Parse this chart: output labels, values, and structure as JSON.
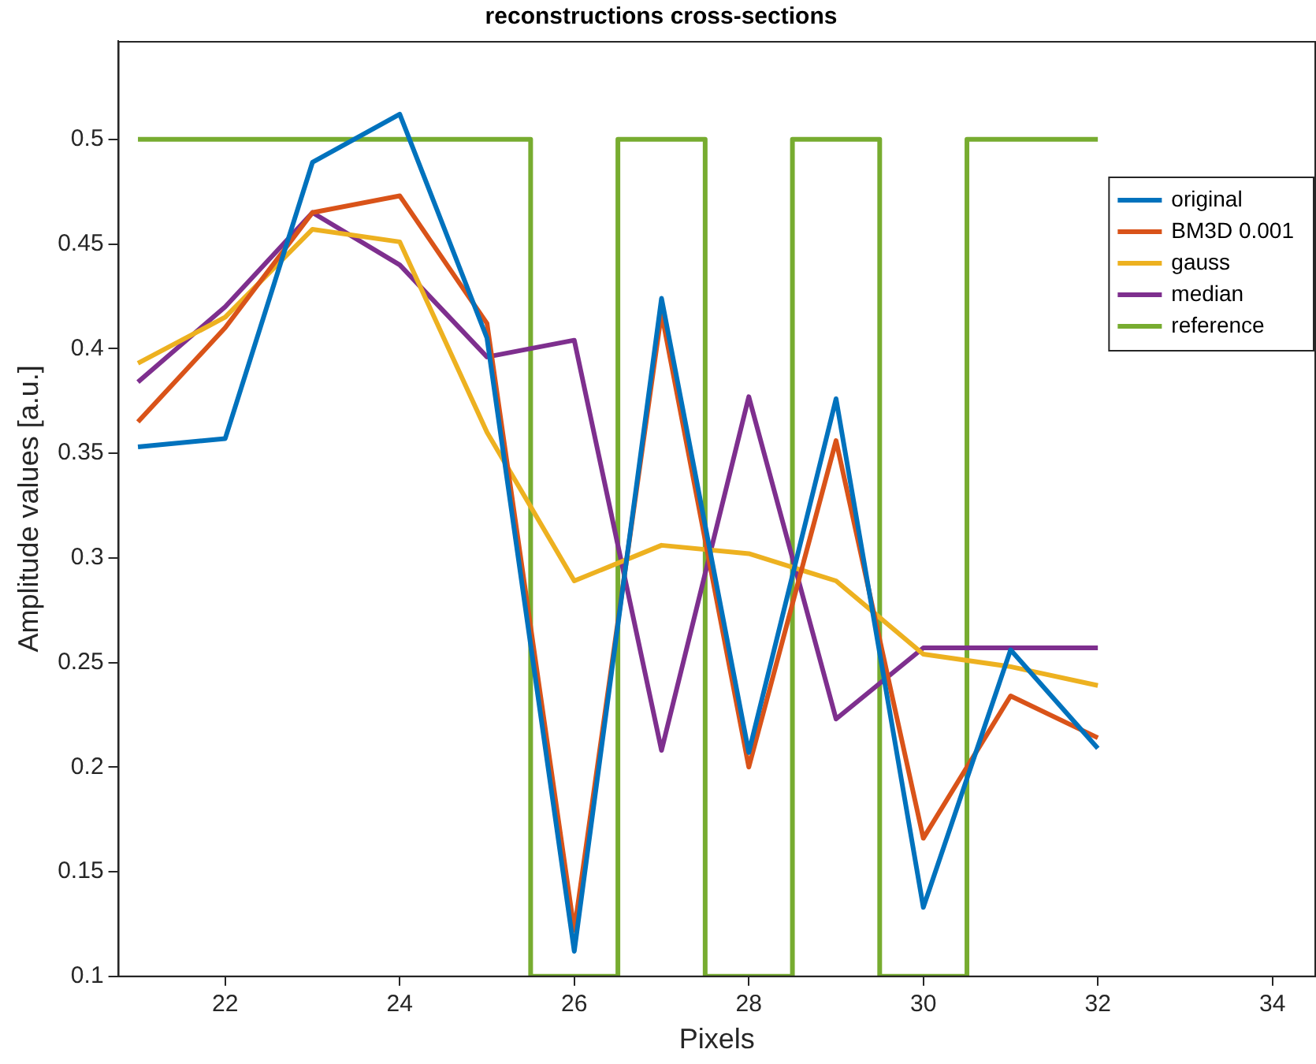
{
  "chart_data": {
    "type": "line",
    "title": "reconstructions cross-sections",
    "xlabel": "Pixels",
    "ylabel": "Amplitude values [a.u.]",
    "x": [
      21,
      22,
      23,
      24,
      25,
      26,
      27,
      28,
      29,
      30,
      31,
      32
    ],
    "series": [
      {
        "name": "original",
        "color": "#0072bd",
        "values": [
          0.353,
          0.357,
          0.489,
          0.512,
          0.405,
          0.112,
          0.424,
          0.207,
          0.376,
          0.133,
          0.256,
          0.209
        ]
      },
      {
        "name": "BM3D 0.001",
        "color": "#d95319",
        "values": [
          0.365,
          0.41,
          0.465,
          0.473,
          0.412,
          0.122,
          0.417,
          0.2,
          0.356,
          0.166,
          0.234,
          0.214
        ]
      },
      {
        "name": "gauss",
        "color": "#edb120",
        "values": [
          0.393,
          0.415,
          0.457,
          0.451,
          0.36,
          0.289,
          0.306,
          0.302,
          0.289,
          0.254,
          0.248,
          0.239
        ]
      },
      {
        "name": "median",
        "color": "#7e2f8e",
        "values": [
          0.384,
          0.42,
          0.465,
          0.44,
          0.396,
          0.404,
          0.208,
          0.377,
          0.223,
          0.257,
          0.257,
          0.257
        ]
      },
      {
        "name": "reference",
        "color": "#77ac30",
        "x": [
          21,
          25.5,
          25.5,
          26.5,
          26.5,
          27.5,
          27.5,
          28.5,
          28.5,
          29.5,
          29.5,
          30.5,
          30.5,
          32
        ],
        "values": [
          0.5,
          0.5,
          0.1,
          0.1,
          0.5,
          0.5,
          0.1,
          0.1,
          0.5,
          0.5,
          0.1,
          0.1,
          0.5,
          0.5
        ]
      }
    ],
    "xlim": [
      20.77,
      34.5
    ],
    "xticks": [
      22,
      24,
      26,
      28,
      30,
      32,
      34
    ],
    "ylim": [
      0.1,
      0.547
    ],
    "yticks": [
      0.1,
      0.15,
      0.2,
      0.25,
      0.3,
      0.35,
      0.4,
      0.45,
      0.5
    ],
    "grid": false,
    "legend": "top right",
    "marker": "none",
    "line_style": "solid"
  }
}
